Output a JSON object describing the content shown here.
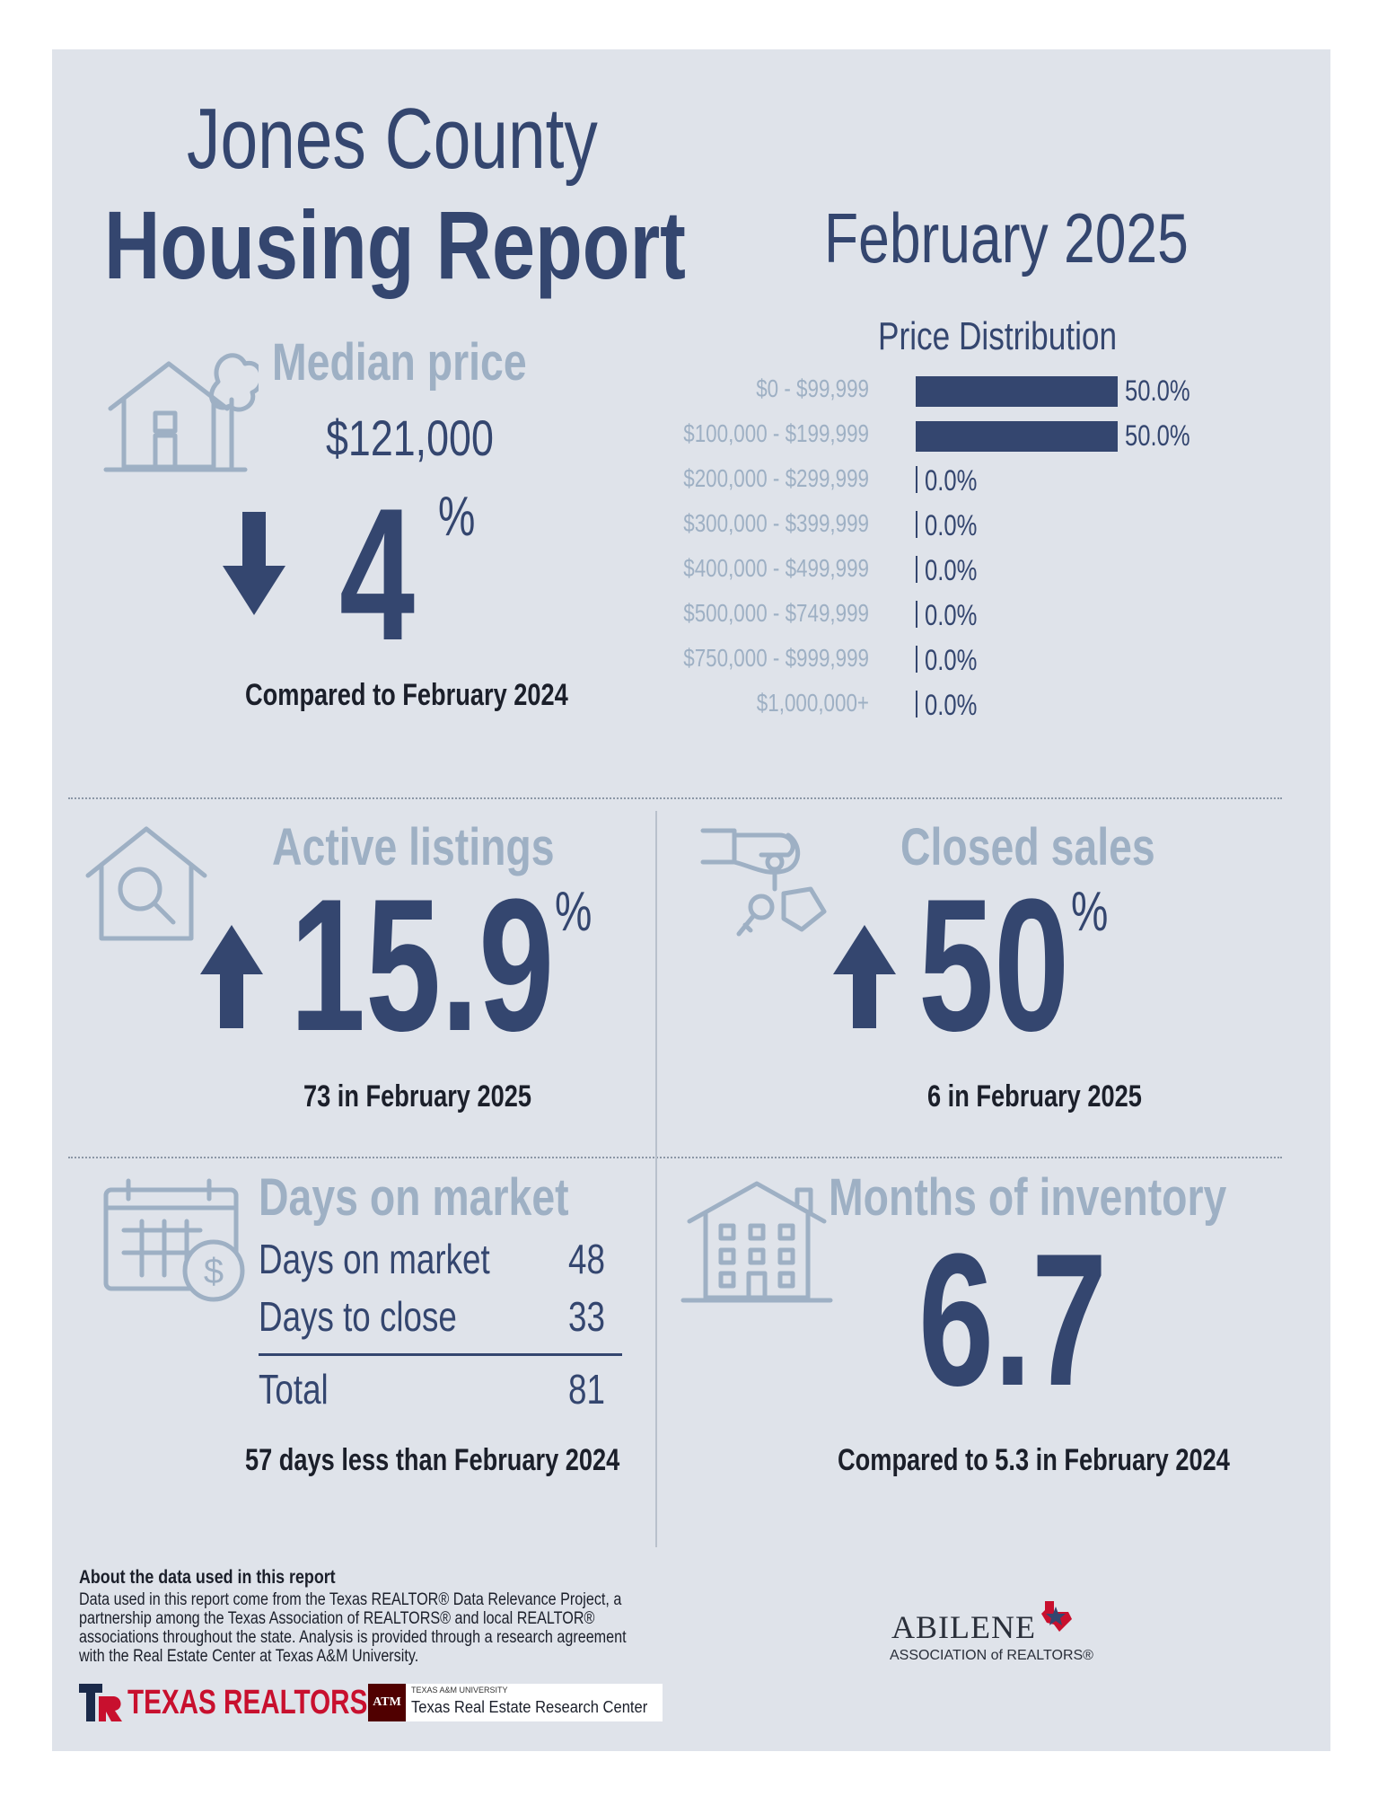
{
  "header": {
    "county": "Jones County",
    "report": "Housing Report",
    "month": "February 2025"
  },
  "median_price": {
    "title": "Median price",
    "value": "$121,000",
    "change": "4",
    "unit": "%",
    "direction": "down",
    "note": "Compared to February 2024"
  },
  "price_distribution": {
    "title": "Price Distribution",
    "rows": [
      {
        "range": "$0 - $99,999",
        "pct": 50.0,
        "label": "50.0%"
      },
      {
        "range": "$100,000 - $199,999",
        "pct": 50.0,
        "label": "50.0%"
      },
      {
        "range": "$200,000 - $299,999",
        "pct": 0.0,
        "label": "0.0%"
      },
      {
        "range": "$300,000 - $399,999",
        "pct": 0.0,
        "label": "0.0%"
      },
      {
        "range": "$400,000 - $499,999",
        "pct": 0.0,
        "label": "0.0%"
      },
      {
        "range": "$500,000 - $749,999",
        "pct": 0.0,
        "label": "0.0%"
      },
      {
        "range": "$750,000 - $999,999",
        "pct": 0.0,
        "label": "0.0%"
      },
      {
        "range": "$1,000,000+",
        "pct": 0.0,
        "label": "0.0%"
      }
    ]
  },
  "active_listings": {
    "title": "Active listings",
    "change": "15.9",
    "unit": "%",
    "direction": "up",
    "note": "73 in February 2025"
  },
  "closed_sales": {
    "title": "Closed sales",
    "change": "50",
    "unit": "%",
    "direction": "up",
    "note": "6 in February 2025"
  },
  "days_on_market": {
    "title": "Days on market",
    "rows": [
      {
        "label": "Days on market",
        "value": "48"
      },
      {
        "label": "Days to close",
        "value": "33"
      }
    ],
    "total_label": "Total",
    "total_value": "81",
    "note": "57 days less than February 2024"
  },
  "months_inventory": {
    "title": "Months of inventory",
    "value": "6.7",
    "note": "Compared to 5.3 in February 2024"
  },
  "about": {
    "heading": "About the data used in this report",
    "lines": [
      "Data used in this report come from the Texas REALTOR® Data Relevance Project, a",
      "partnership among the Texas Association of REALTORS® and local REALTOR®",
      "associations throughout the state. Analysis is provided through a research agreement",
      "with the Real Estate Center at Texas A&M University."
    ]
  },
  "logos": {
    "texas_realtors": "TEXAS REALTORS",
    "tamu_small": "TEXAS A&M UNIVERSITY",
    "tamu_center": "Texas Real Estate Research Center",
    "abilene": "ABILENE",
    "abilene_sub": "ASSOCIATION of REALTORS®"
  },
  "colors": {
    "navy": "#34466f",
    "light": "#9eb0c4",
    "panel": "#dfe3ea",
    "red": "#c8102e"
  }
}
